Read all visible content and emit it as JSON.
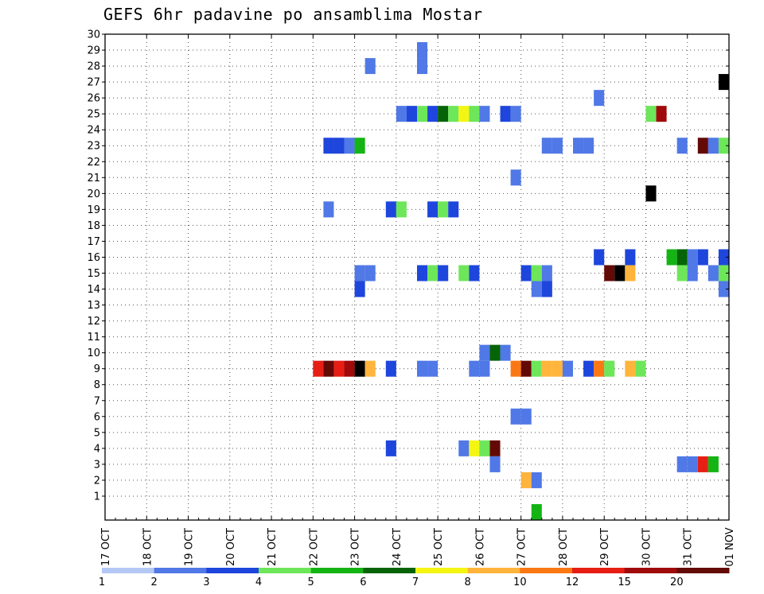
{
  "chart_data": {
    "type": "heatmap",
    "title": "GEFS 6hr padavine po ansamblima Mostar",
    "xlabel": "",
    "ylabel": "",
    "x_tick_labels": [
      "17 OCT",
      "18 OCT",
      "19 OCT",
      "20 OCT",
      "21 OCT",
      "22 OCT",
      "23 OCT",
      "24 OCT",
      "25 OCT",
      "26 OCT",
      "27 OCT",
      "28 OCT",
      "29 OCT",
      "30 OCT",
      "31 OCT",
      "01 NOV"
    ],
    "y_tick_labels": [
      "1",
      "2",
      "3",
      "4",
      "5",
      "6",
      "7",
      "8",
      "9",
      "10",
      "11",
      "12",
      "13",
      "14",
      "15",
      "16",
      "17",
      "18",
      "19",
      "20",
      "21",
      "22",
      "23",
      "24",
      "25",
      "26",
      "27",
      "28",
      "29",
      "30"
    ],
    "xlim": [
      0,
      60
    ],
    "ylim": [
      0,
      30
    ],
    "grid": true,
    "legend": {
      "placement": "bottom",
      "thresholds": [
        "1",
        "2",
        "3",
        "4",
        "5",
        "6",
        "7",
        "8",
        "10",
        "12",
        "15",
        "20"
      ],
      "colors": [
        "#b4c8f5",
        "#5078e6",
        "#1e46dc",
        "#6ee65a",
        "#14b414",
        "#066406",
        "#f5f514",
        "#ffb43c",
        "#fa7814",
        "#e61e14",
        "#a00a0a",
        "#640a06"
      ]
    },
    "cells": [
      [
        30,
        29,
        1
      ],
      [
        30,
        28,
        1
      ],
      [
        25,
        28,
        1
      ],
      [
        59,
        27,
        13
      ],
      [
        60,
        27,
        2
      ],
      [
        47,
        26,
        1
      ],
      [
        28,
        25,
        1
      ],
      [
        29,
        25,
        2
      ],
      [
        30,
        25,
        3
      ],
      [
        31,
        25,
        2
      ],
      [
        32,
        25,
        5
      ],
      [
        33,
        25,
        3
      ],
      [
        34,
        25,
        6
      ],
      [
        35,
        25,
        3
      ],
      [
        36,
        25,
        1
      ],
      [
        38,
        25,
        2
      ],
      [
        39,
        25,
        1
      ],
      [
        52,
        25,
        3
      ],
      [
        53,
        25,
        10
      ],
      [
        21,
        23,
        2
      ],
      [
        22,
        23,
        2
      ],
      [
        23,
        23,
        1
      ],
      [
        24,
        23,
        4
      ],
      [
        42,
        23,
        1
      ],
      [
        43,
        23,
        1
      ],
      [
        45,
        23,
        1
      ],
      [
        46,
        23,
        1
      ],
      [
        55,
        23,
        1
      ],
      [
        57,
        23,
        11
      ],
      [
        58,
        23,
        1
      ],
      [
        59,
        23,
        3
      ],
      [
        60,
        22,
        1
      ],
      [
        39,
        21,
        1
      ],
      [
        52,
        20,
        13
      ],
      [
        21,
        19,
        1
      ],
      [
        27,
        19,
        2
      ],
      [
        28,
        19,
        3
      ],
      [
        31,
        19,
        2
      ],
      [
        32,
        19,
        3
      ],
      [
        33,
        19,
        2
      ],
      [
        60,
        17,
        1
      ],
      [
        47,
        16,
        2
      ],
      [
        50,
        16,
        2
      ],
      [
        54,
        16,
        4
      ],
      [
        55,
        16,
        5
      ],
      [
        56,
        16,
        1
      ],
      [
        57,
        16,
        2
      ],
      [
        59,
        16,
        2
      ],
      [
        60,
        16,
        1
      ],
      [
        24,
        15,
        1
      ],
      [
        25,
        15,
        1
      ],
      [
        30,
        15,
        2
      ],
      [
        31,
        15,
        3
      ],
      [
        32,
        15,
        2
      ],
      [
        34,
        15,
        3
      ],
      [
        35,
        15,
        2
      ],
      [
        40,
        15,
        2
      ],
      [
        41,
        15,
        3
      ],
      [
        42,
        15,
        1
      ],
      [
        48,
        15,
        11
      ],
      [
        49,
        15,
        12
      ],
      [
        50,
        15,
        7
      ],
      [
        55,
        15,
        3
      ],
      [
        56,
        15,
        1
      ],
      [
        58,
        15,
        1
      ],
      [
        59,
        15,
        3
      ],
      [
        60,
        15,
        1
      ],
      [
        24,
        14,
        2
      ],
      [
        41,
        14,
        1
      ],
      [
        42,
        14,
        2
      ],
      [
        59,
        14,
        1
      ],
      [
        60,
        14,
        9
      ],
      [
        36,
        10,
        1
      ],
      [
        37,
        10,
        5
      ],
      [
        38,
        10,
        1
      ],
      [
        20,
        9,
        9
      ],
      [
        21,
        9,
        11
      ],
      [
        22,
        9,
        9
      ],
      [
        23,
        9,
        10
      ],
      [
        24,
        9,
        12
      ],
      [
        25,
        9,
        7
      ],
      [
        27,
        9,
        2
      ],
      [
        30,
        9,
        1
      ],
      [
        31,
        9,
        1
      ],
      [
        35,
        9,
        1
      ],
      [
        36,
        9,
        1
      ],
      [
        39,
        9,
        8
      ],
      [
        40,
        9,
        11
      ],
      [
        41,
        9,
        3
      ],
      [
        42,
        9,
        7
      ],
      [
        43,
        9,
        7
      ],
      [
        44,
        9,
        1
      ],
      [
        46,
        9,
        2
      ],
      [
        47,
        9,
        8
      ],
      [
        48,
        9,
        3
      ],
      [
        50,
        9,
        7
      ],
      [
        51,
        9,
        3
      ],
      [
        60,
        9,
        4
      ],
      [
        39,
        6,
        1
      ],
      [
        40,
        6,
        1
      ],
      [
        27,
        4,
        2
      ],
      [
        34,
        4,
        1
      ],
      [
        35,
        4,
        6
      ],
      [
        36,
        4,
        3
      ],
      [
        37,
        4,
        11
      ],
      [
        37,
        3,
        1
      ],
      [
        55,
        3,
        1
      ],
      [
        56,
        3,
        1
      ],
      [
        57,
        3,
        9
      ],
      [
        58,
        3,
        4
      ],
      [
        40,
        2,
        7
      ],
      [
        41,
        2,
        1
      ],
      [
        41,
        0,
        4
      ]
    ]
  }
}
